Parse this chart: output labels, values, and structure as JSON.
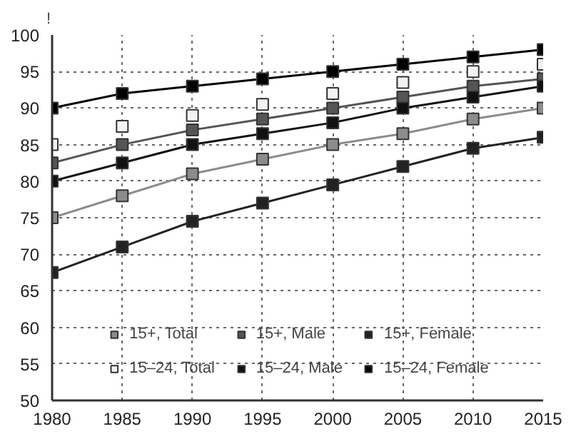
{
  "chart_data": {
    "type": "line",
    "ylabel": "!",
    "x": [
      1980,
      1985,
      1990,
      1995,
      2000,
      2005,
      2010,
      2015
    ],
    "xlim": [
      1980,
      2015
    ],
    "xticks": [
      1980,
      1985,
      1990,
      1995,
      2000,
      2005,
      2010,
      2015
    ],
    "ylim": [
      50,
      100
    ],
    "yticks": [
      50,
      55,
      60,
      65,
      70,
      75,
      80,
      85,
      90,
      95,
      100
    ],
    "grid": true,
    "legend": "bottom",
    "marker": "square",
    "series": [
      {
        "name": "15+, Total",
        "color": "#8c8c8c",
        "values": [
          75,
          78,
          81,
          83,
          85,
          86.5,
          88.5,
          90
        ]
      },
      {
        "name": "15+, Male",
        "color": "#555555",
        "values": [
          82.5,
          85,
          87,
          88.5,
          90,
          91.5,
          93,
          94
        ]
      },
      {
        "name": "15+, Female",
        "color": "#222222",
        "values": [
          67.5,
          71,
          74.5,
          77,
          79.5,
          82,
          84.5,
          86
        ]
      },
      {
        "name": "15–24, Total",
        "type": "scatter",
        "color": "#f2f2f2",
        "values": [
          85,
          87.5,
          89,
          90.5,
          92,
          93.5,
          95,
          96
        ]
      },
      {
        "name": "15–24, Male",
        "color": "#111111",
        "values": [
          80,
          82.5,
          85,
          86.5,
          88,
          90,
          91.5,
          93
        ]
      },
      {
        "name": "15–24, Female",
        "color": "#000000",
        "values": [
          90,
          92,
          93,
          94,
          95,
          96,
          97,
          98
        ]
      }
    ]
  }
}
